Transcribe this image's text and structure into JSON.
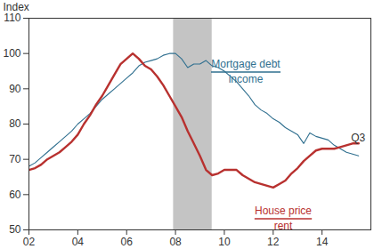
{
  "chart_data": {
    "type": "line",
    "y_label": "Index",
    "x": [
      2002,
      2002.25,
      2002.5,
      2002.75,
      2003,
      2003.25,
      2003.5,
      2003.75,
      2004,
      2004.25,
      2004.5,
      2004.75,
      2005,
      2005.25,
      2005.5,
      2005.75,
      2006,
      2006.25,
      2006.5,
      2006.75,
      2007,
      2007.25,
      2007.5,
      2007.75,
      2008,
      2008.25,
      2008.5,
      2008.75,
      2009,
      2009.25,
      2009.5,
      2009.75,
      2010,
      2010.25,
      2010.5,
      2010.75,
      2011,
      2011.25,
      2011.5,
      2011.75,
      2012,
      2012.25,
      2012.5,
      2012.75,
      2013,
      2013.25,
      2013.5,
      2013.75,
      2014,
      2014.25,
      2014.5,
      2014.75,
      2015,
      2015.25,
      2015.5
    ],
    "series": [
      {
        "name": [
          "Mortgage debt",
          "income"
        ],
        "color": "#2f6f8f",
        "values": [
          68,
          69,
          70.5,
          72,
          73.5,
          75,
          76.5,
          78,
          80,
          81.5,
          83,
          85,
          87,
          88.5,
          90,
          91.5,
          93,
          94.5,
          96.5,
          97.5,
          98,
          98.5,
          99.5,
          100,
          100,
          98.5,
          96,
          97,
          97,
          98,
          96.5,
          96,
          95,
          93.5,
          92,
          90,
          88,
          85.5,
          84,
          83,
          81.5,
          80.5,
          79,
          78,
          77,
          74.5,
          77.5,
          76.5,
          76,
          75.5,
          74,
          73,
          72,
          71.5,
          71
        ]
      },
      {
        "name": [
          "House price",
          "rent"
        ],
        "color": "#b8312f",
        "values": [
          67,
          67.5,
          68.5,
          70,
          71,
          72,
          73.5,
          75,
          77,
          80,
          82.5,
          85.5,
          88,
          91,
          94,
          97,
          98.5,
          100,
          98.5,
          96.5,
          95.5,
          93.5,
          91,
          88,
          85,
          82,
          78,
          74.5,
          71,
          67,
          65.5,
          66,
          67,
          67,
          67,
          65.5,
          64.5,
          63.5,
          63,
          62.5,
          62,
          63,
          64,
          66,
          67.5,
          69.5,
          71,
          72.5,
          73,
          73,
          73,
          73.5,
          74,
          74.5,
          74.5
        ]
      }
    ],
    "recession": [
      2007.92,
      2009.5
    ],
    "annotations": [
      "Q3"
    ],
    "xlim": [
      2002,
      2016
    ],
    "xticks": [
      {
        "value": 2002,
        "label": "02"
      },
      {
        "value": 2004,
        "label": "04"
      },
      {
        "value": 2006,
        "label": "06"
      },
      {
        "value": 2008,
        "label": "08"
      },
      {
        "value": 2010,
        "label": "10"
      },
      {
        "value": 2012,
        "label": "12"
      },
      {
        "value": 2014,
        "label": "14"
      }
    ],
    "ylim": [
      50,
      110
    ],
    "yticks": [
      50,
      60,
      70,
      80,
      90,
      100,
      110
    ],
    "grid": false
  }
}
